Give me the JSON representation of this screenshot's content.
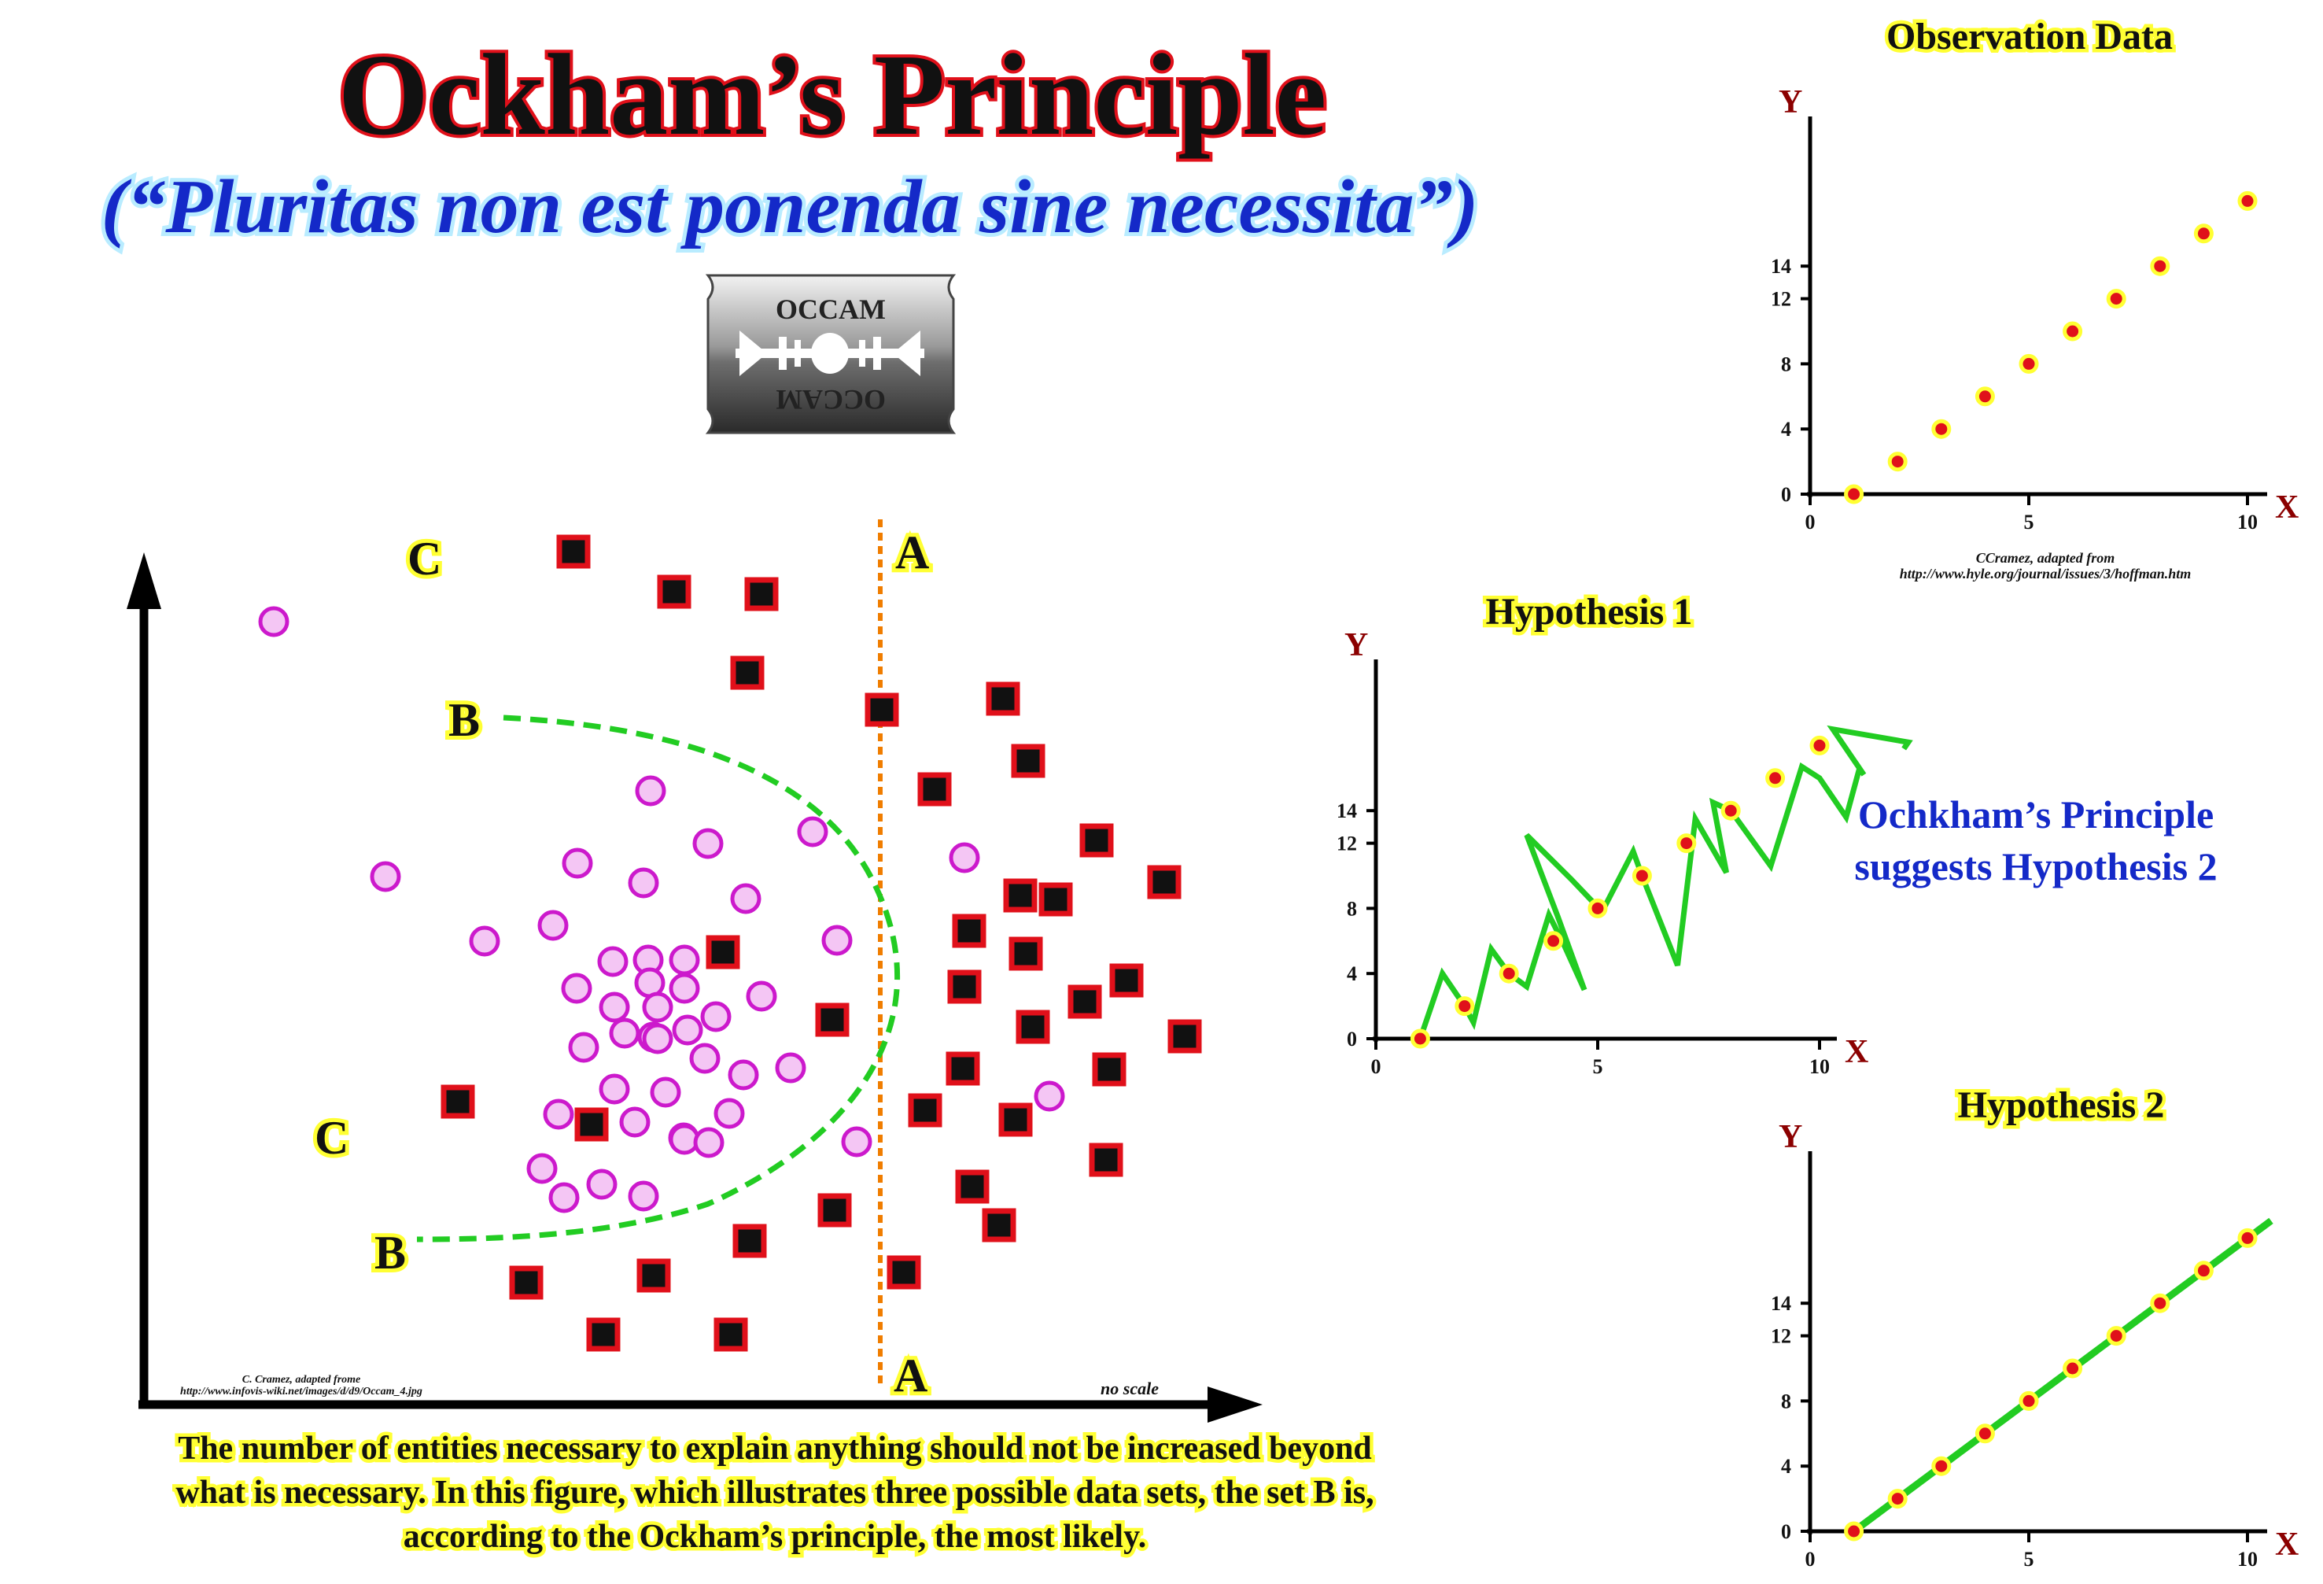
{
  "title": "Ockham’s Principle",
  "subtitle": "(“Pluritas non est ponenda sine necessita”)",
  "logo": {
    "icon": "razor-blade-icon",
    "text_top": "OCCAM",
    "text_bottom": "OCCAM"
  },
  "scatter": {
    "labels": {
      "a_top": "A",
      "a_bottom": "A",
      "b_top": "B",
      "b_bottom": "B",
      "c_top": "C",
      "c_bottom": "C"
    },
    "credit_line1": "C. Cramez, adapted frome",
    "credit_line2": "http://www.infovis-wiki.net/images/d/d9/Occam_4.jpg",
    "scale_note": "no scale",
    "colors": {
      "square_fill": "#111111",
      "square_border": "#e0101a",
      "circle_fill": "#f4c6f4",
      "circle_border": "#cc19cc",
      "boundary_a": "#f07d00",
      "boundary_b": "#22cc22"
    }
  },
  "caption": {
    "line1": "The number of entities necessary to explain anything should not be increased beyond",
    "line2": "what is necessary. In this figure, which illustrates three possible data sets, the set B is,",
    "line3": "according to the Ockham’s principle, the most likely."
  },
  "suggestion": {
    "line1": "Ochkham’s Principle",
    "line2": "suggests Hypothesis 2"
  },
  "charts_credit": {
    "line1": "CCramez, adapted from",
    "line2": "http://www.hyle.org/journal/issues/3/hoffman.htm"
  },
  "chart_data": [
    {
      "type": "scatter",
      "title": "Observation Data",
      "xlabel": "X",
      "ylabel": "Y",
      "xlim": [
        0,
        10
      ],
      "ylim": [
        0,
        16
      ],
      "xticks": [
        0,
        5,
        10
      ],
      "yticks": [
        0,
        4,
        8,
        12,
        14
      ],
      "x": [
        1,
        2,
        3,
        4,
        5,
        6,
        7,
        8,
        9,
        10
      ],
      "y": [
        0,
        2,
        4,
        6,
        8,
        10,
        12,
        14,
        16,
        18
      ]
    },
    {
      "type": "line",
      "title": "Hypothesis 1",
      "xlabel": "X",
      "ylabel": "Y",
      "xlim": [
        0,
        10
      ],
      "ylim": [
        0,
        16
      ],
      "xticks": [
        0,
        5,
        10
      ],
      "yticks": [
        0,
        4,
        8,
        12,
        14
      ],
      "x": [
        1,
        2,
        3,
        4,
        5,
        6,
        7,
        8,
        9,
        10
      ],
      "y": [
        0,
        2,
        4,
        6,
        8,
        10,
        12,
        14,
        16,
        18
      ],
      "curve": [
        [
          1,
          0
        ],
        [
          1.5,
          4
        ],
        [
          2,
          2
        ],
        [
          2.2,
          1
        ],
        [
          2.6,
          5.5
        ],
        [
          3,
          4
        ],
        [
          3.4,
          3.2
        ],
        [
          3.9,
          7.6
        ],
        [
          4.2,
          6
        ],
        [
          4.7,
          3
        ],
        [
          4.1,
          7.5
        ],
        [
          3.4,
          12.5
        ],
        [
          4.4,
          9.8
        ],
        [
          5.1,
          7.8
        ],
        [
          5.8,
          11.5
        ],
        [
          6,
          10
        ],
        [
          6.8,
          4.5
        ],
        [
          7.2,
          13.5
        ],
        [
          7.9,
          10.2
        ],
        [
          7.6,
          14.5
        ],
        [
          8,
          14
        ],
        [
          8.9,
          10.6
        ],
        [
          9.6,
          16.7
        ],
        [
          10,
          16
        ],
        [
          10.6,
          13.6
        ],
        [
          10.9,
          16.6
        ],
        [
          11,
          16.2
        ],
        [
          10.3,
          19
        ],
        [
          12,
          18.2
        ],
        [
          11.9,
          17.8
        ]
      ],
      "note": ""
    },
    {
      "type": "line",
      "title": "Hypothesis 2",
      "xlabel": "X",
      "ylabel": "Y",
      "xlim": [
        0,
        10
      ],
      "ylim": [
        0,
        16
      ],
      "xticks": [
        0,
        5,
        10
      ],
      "yticks": [
        0,
        4,
        8,
        12,
        14
      ],
      "x": [
        1,
        2,
        3,
        4,
        5,
        6,
        7,
        8,
        9,
        10
      ],
      "y": [
        0,
        2,
        4,
        6,
        8,
        10,
        12,
        14,
        16,
        18
      ]
    }
  ]
}
